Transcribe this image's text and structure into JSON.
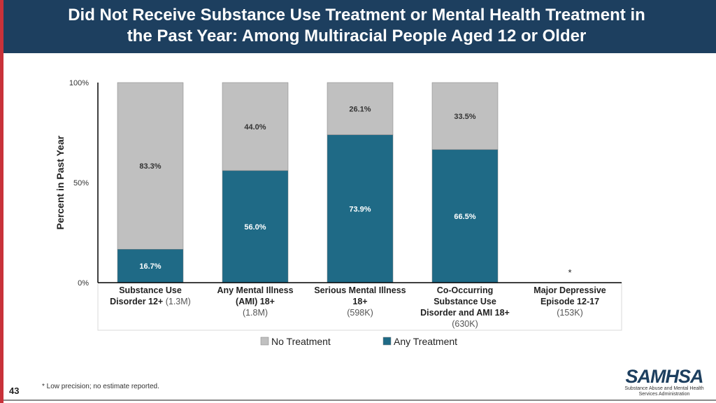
{
  "slide": {
    "title_line1": "Did Not Receive Substance Use Treatment or Mental Health Treatment in",
    "title_line2": "the Past Year: Among Multiracial People Aged 12 or Older",
    "footnote": "* Low precision; no estimate reported.",
    "page_number": "43",
    "logo_word": "SAMHSA",
    "logo_sub_line1": "Substance Abuse and Mental Health",
    "logo_sub_line2": "Services Administration"
  },
  "colors": {
    "header": "#1d3f5f",
    "accent": "#c8323a",
    "no_treatment": "#c0c0c0",
    "any_treatment": "#1f6a86"
  },
  "chart_data": {
    "type": "bar",
    "stacked": true,
    "ylabel": "Percent in Past Year",
    "ylim": [
      0,
      100
    ],
    "yticks": [
      "0%",
      "50%",
      "100%"
    ],
    "categories": [
      {
        "label_lines": [
          "Substance Use",
          "Disorder 12+"
        ],
        "sample_size": "(1.3M)"
      },
      {
        "label_lines": [
          "Any Mental Illness",
          "(AMI) 18+"
        ],
        "sample_size": "(1.8M)"
      },
      {
        "label_lines": [
          "Serious Mental Illness",
          "18+"
        ],
        "sample_size": "(598K)"
      },
      {
        "label_lines": [
          "Co-Occurring",
          "Substance Use",
          "Disorder and AMI 18+"
        ],
        "sample_size": "(630K)"
      },
      {
        "label_lines": [
          "Major Depressive",
          "Episode 12-17"
        ],
        "sample_size": "(153K)"
      }
    ],
    "series": [
      {
        "name": "Any Treatment",
        "values": [
          16.7,
          56.0,
          73.9,
          66.5,
          null
        ],
        "labels": [
          "16.7%",
          "56.0%",
          "73.9%",
          "66.5%",
          ""
        ]
      },
      {
        "name": "No Treatment",
        "values": [
          83.3,
          44.0,
          26.1,
          33.5,
          null
        ],
        "labels": [
          "83.3%",
          "44.0%",
          "26.1%",
          "33.5%",
          ""
        ]
      }
    ],
    "annotations": [
      {
        "category_index": 4,
        "text": "*"
      }
    ],
    "legend": {
      "position": "bottom",
      "entries": [
        "No Treatment",
        "Any Treatment"
      ]
    }
  }
}
